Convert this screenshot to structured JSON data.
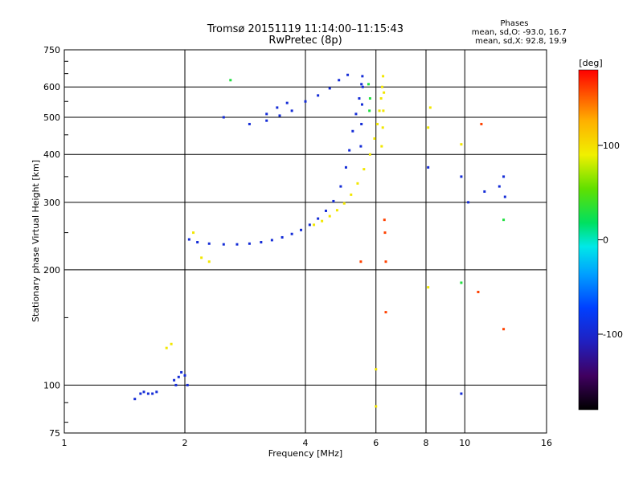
{
  "header": {
    "title_line1": "Tromsø 20151119 11:14:00–11:15:43",
    "title_line2": "RwPretec (8p)",
    "stats_title": "Phases",
    "stats_line1": "mean, sd,O: -93.0, 16.7",
    "stats_line2": "mean, sd,X:  92.8, 19.9"
  },
  "chart_data": {
    "type": "scatter",
    "title": "Tromsø 20151119 11:14:00–11:15:43",
    "subtitle": "RwPretec (8p)",
    "xlabel": "Frequency [MHz]",
    "ylabel": "Stationary phase Virtual Height [km]",
    "x_scale": "log",
    "y_scale": "log",
    "xlim": [
      1,
      16
    ],
    "ylim": [
      75,
      750
    ],
    "x_ticks": [
      "1",
      "2",
      "4",
      "6",
      "8",
      "10",
      "16"
    ],
    "x_tick_values": [
      1,
      2,
      4,
      6,
      8,
      10,
      16
    ],
    "y_ticks": [
      "75",
      "100",
      "200",
      "300",
      "400",
      "500",
      "600",
      "750"
    ],
    "y_tick_values": [
      75,
      100,
      200,
      300,
      400,
      500,
      600,
      750
    ],
    "grid": true,
    "colorbar": {
      "label": "[deg]",
      "range": [
        -180,
        180
      ],
      "ticks": [
        "-100",
        "0",
        "100"
      ],
      "tick_values": [
        -100,
        0,
        100
      ]
    },
    "series": [
      {
        "mode": "O",
        "phase_deg": -95,
        "points": [
          [
            1.5,
            92
          ],
          [
            1.55,
            95
          ],
          [
            1.58,
            96
          ],
          [
            1.62,
            95
          ],
          [
            1.66,
            95
          ],
          [
            1.7,
            96
          ],
          [
            1.9,
            100
          ],
          [
            1.93,
            105
          ],
          [
            1.96,
            108
          ],
          [
            2.0,
            106
          ],
          [
            2.03,
            100
          ],
          [
            1.88,
            103
          ],
          [
            2.05,
            240
          ],
          [
            2.15,
            236
          ],
          [
            2.3,
            234
          ],
          [
            2.5,
            233
          ],
          [
            2.7,
            233
          ],
          [
            2.9,
            234
          ],
          [
            3.1,
            236
          ],
          [
            3.3,
            239
          ],
          [
            3.5,
            243
          ],
          [
            3.7,
            248
          ],
          [
            3.9,
            254
          ],
          [
            4.1,
            262
          ],
          [
            4.3,
            272
          ],
          [
            4.5,
            285
          ],
          [
            4.7,
            302
          ],
          [
            4.9,
            330
          ],
          [
            5.05,
            370
          ],
          [
            5.15,
            410
          ],
          [
            5.25,
            460
          ],
          [
            5.35,
            510
          ],
          [
            5.45,
            560
          ],
          [
            5.52,
            610
          ],
          [
            5.55,
            640
          ],
          [
            5.5,
            420
          ],
          [
            5.52,
            480
          ],
          [
            5.54,
            540
          ],
          [
            5.56,
            600
          ],
          [
            3.2,
            510
          ],
          [
            3.4,
            530
          ],
          [
            3.6,
            545
          ],
          [
            3.2,
            490
          ],
          [
            3.45,
            505
          ],
          [
            3.7,
            520
          ],
          [
            4.0,
            550
          ],
          [
            4.3,
            570
          ],
          [
            4.6,
            595
          ],
          [
            4.85,
            625
          ],
          [
            5.1,
            645
          ],
          [
            2.5,
            500
          ],
          [
            2.9,
            480
          ],
          [
            8.1,
            370
          ],
          [
            9.8,
            350
          ],
          [
            10.2,
            300
          ],
          [
            11.2,
            320
          ],
          [
            12.2,
            330
          ],
          [
            12.5,
            350
          ],
          [
            12.6,
            310
          ],
          [
            9.8,
            95
          ]
        ]
      },
      {
        "mode": "X",
        "phase_deg": 95,
        "points": [
          [
            4.2,
            262
          ],
          [
            4.4,
            268
          ],
          [
            4.6,
            276
          ],
          [
            4.8,
            286
          ],
          [
            5.0,
            298
          ],
          [
            5.2,
            314
          ],
          [
            5.4,
            336
          ],
          [
            5.6,
            366
          ],
          [
            5.8,
            400
          ],
          [
            5.95,
            440
          ],
          [
            6.05,
            480
          ],
          [
            6.12,
            520
          ],
          [
            6.18,
            560
          ],
          [
            6.22,
            600
          ],
          [
            6.25,
            640
          ],
          [
            6.2,
            420
          ],
          [
            6.24,
            470
          ],
          [
            6.26,
            520
          ],
          [
            6.28,
            580
          ],
          [
            2.1,
            250
          ],
          [
            2.2,
            215
          ],
          [
            2.3,
            210
          ],
          [
            1.8,
            125
          ],
          [
            1.85,
            128
          ],
          [
            9.8,
            425
          ],
          [
            8.1,
            470
          ],
          [
            8.2,
            530
          ],
          [
            6.0,
            110
          ],
          [
            6.0,
            88
          ],
          [
            8.1,
            180
          ]
        ]
      },
      {
        "mode": "other",
        "phase_deg": 160,
        "points": [
          [
            6.3,
            270
          ],
          [
            6.32,
            250
          ],
          [
            6.35,
            210
          ],
          [
            6.35,
            155
          ],
          [
            11.0,
            480
          ],
          [
            10.8,
            175
          ],
          [
            12.5,
            140
          ],
          [
            5.5,
            210
          ]
        ]
      },
      {
        "mode": "other",
        "phase_deg": 30,
        "points": [
          [
            5.75,
            610
          ],
          [
            5.8,
            560
          ],
          [
            5.78,
            520
          ],
          [
            9.8,
            185
          ],
          [
            12.5,
            270
          ],
          [
            2.6,
            625
          ]
        ]
      }
    ]
  }
}
